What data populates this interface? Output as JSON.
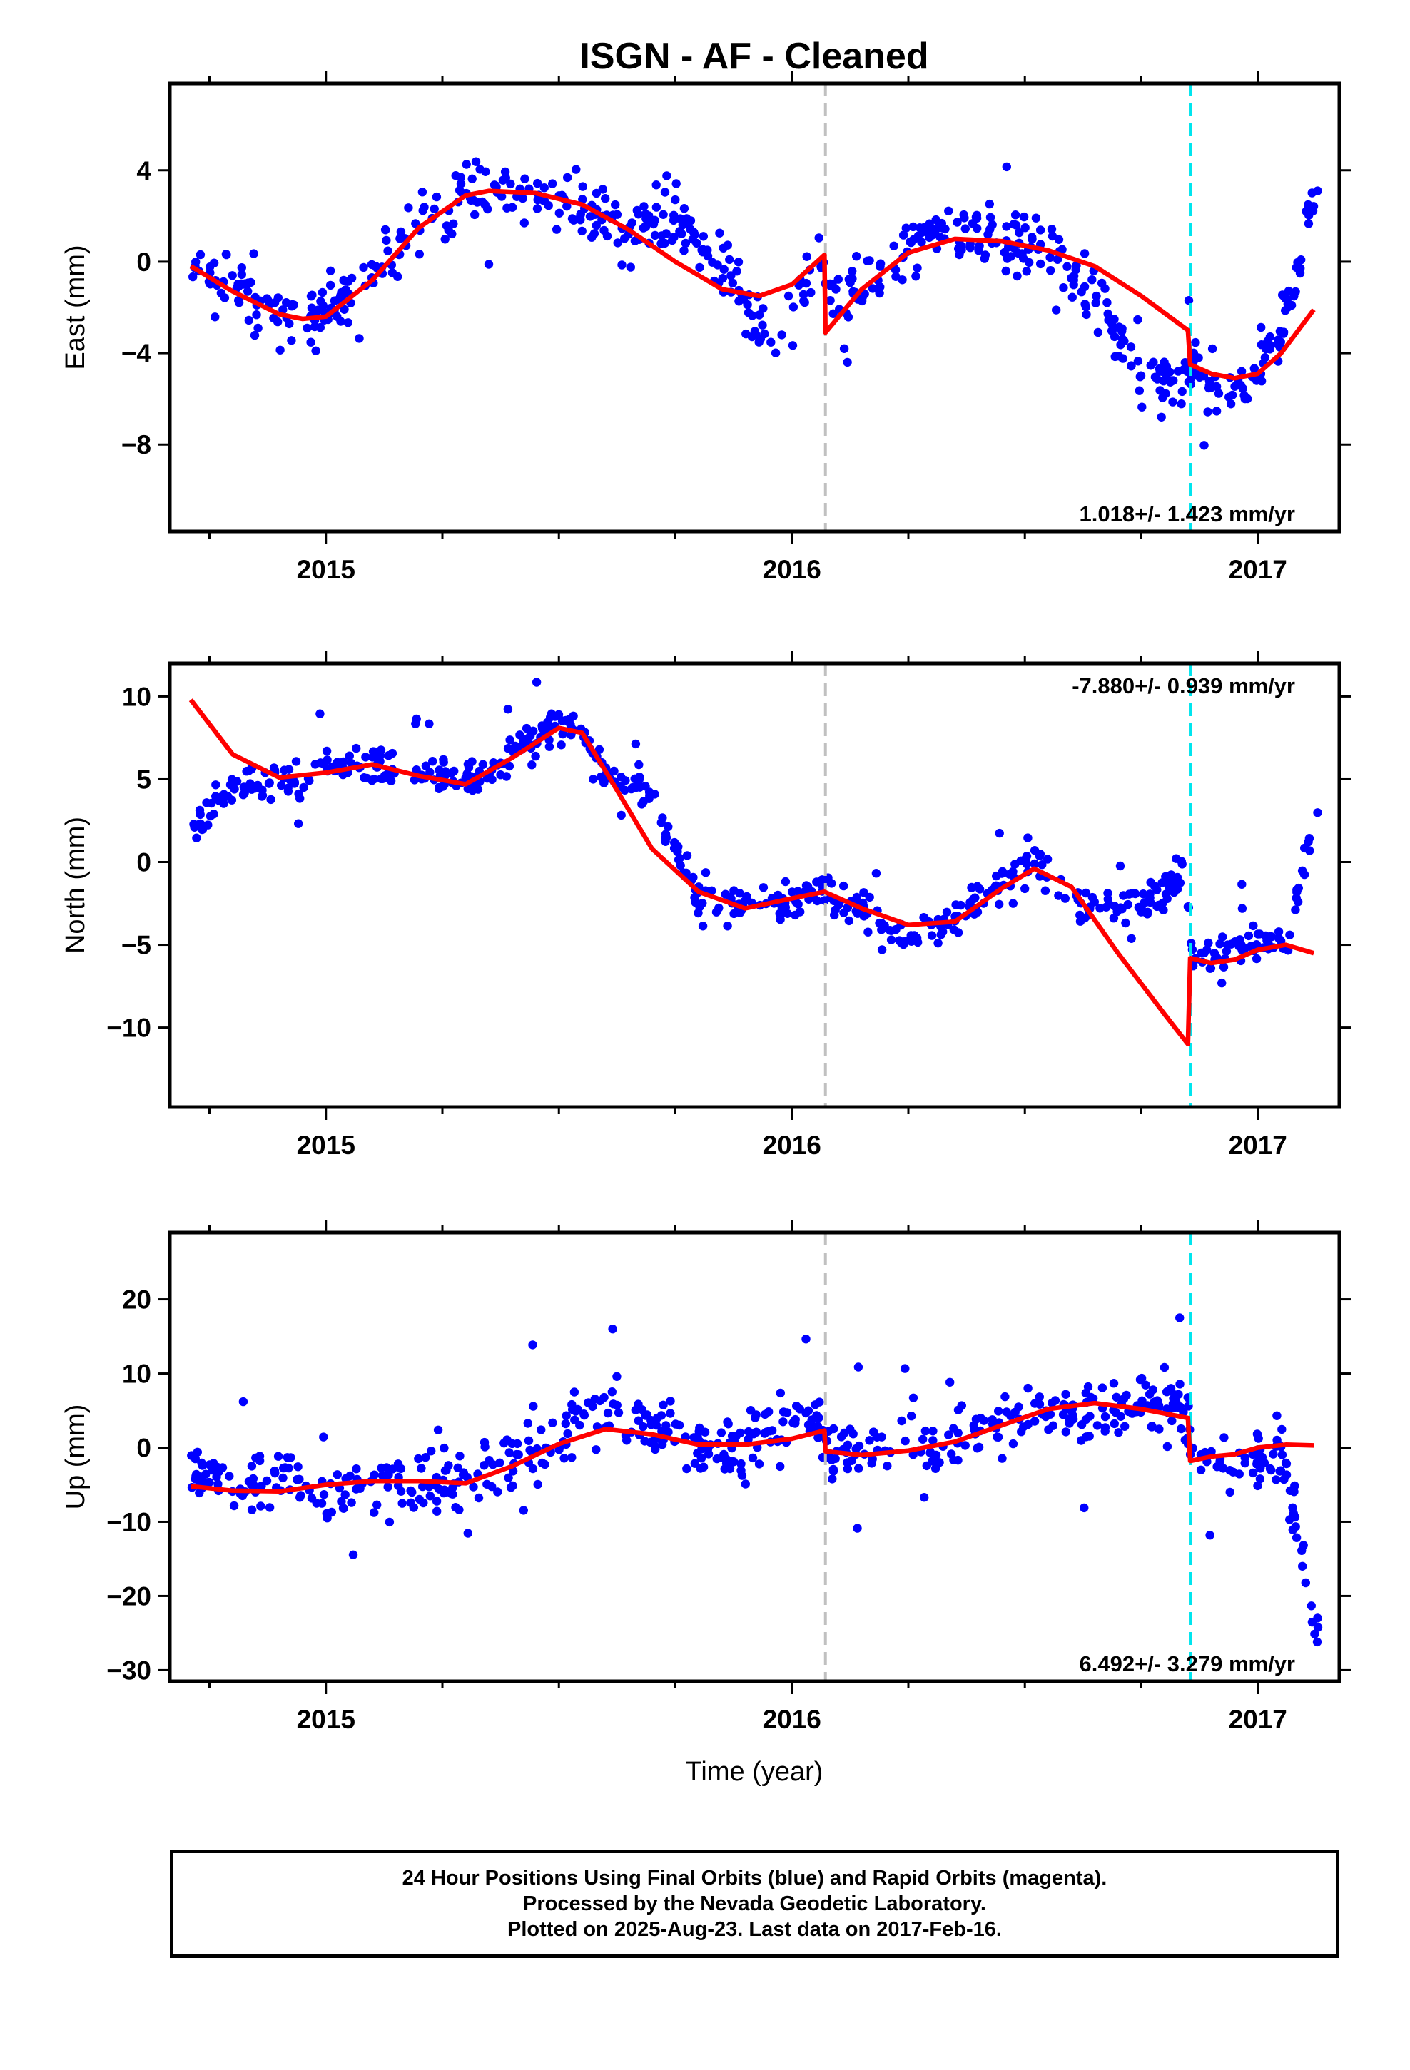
{
  "title": "ISGN  - AF - Cleaned",
  "xlabel": "Time (year)",
  "footer": {
    "line1": "24 Hour Positions Using Final Orbits (blue) and Rapid Orbits (magenta).",
    "line2": "Processed by the Nevada Geodetic Laboratory.",
    "line3": "Plotted on 2025-Aug-23. Last data on 2017-Feb-16."
  },
  "colors": {
    "points": "#0000ff",
    "fit": "#ff0000",
    "equipment_change": "#c0c0c0",
    "earthquake": "#00e5ee"
  },
  "chart_data": [
    {
      "type": "scatter",
      "ylabel": "East (mm)",
      "rate": "1.018+/- 1.423 mm/yr",
      "rate_position": "bottom-right",
      "xlim": [
        2014.665,
        2017.175
      ],
      "ylim": [
        -11.8,
        7.8
      ],
      "yticks": [
        -8,
        -4,
        0,
        4
      ],
      "xticks": [
        2015,
        2016,
        2017
      ],
      "vlines": [
        {
          "x": 2016.072,
          "kind": "equipment_change"
        },
        {
          "x": 2016.855,
          "kind": "earthquake"
        }
      ],
      "fit": {
        "x": [
          2014.71,
          2014.8,
          2014.9,
          2014.95,
          2015.0,
          2015.1,
          2015.2,
          2015.3,
          2015.35,
          2015.45,
          2015.55,
          2015.65,
          2015.75,
          2015.85,
          2015.93,
          2016.0,
          2016.07,
          2016.072,
          2016.15,
          2016.25,
          2016.35,
          2016.45,
          2016.55,
          2016.65,
          2016.75,
          2016.85,
          2016.855,
          2016.9,
          2016.95,
          2017.0,
          2017.05,
          2017.12
        ],
        "y": [
          -0.2,
          -1.3,
          -2.3,
          -2.5,
          -2.4,
          -0.8,
          1.5,
          2.9,
          3.1,
          3.0,
          2.5,
          1.4,
          0.0,
          -1.2,
          -1.5,
          -1.0,
          0.3,
          -3.1,
          -1.2,
          0.4,
          1.0,
          0.9,
          0.5,
          -0.2,
          -1.5,
          -3.0,
          -4.5,
          -4.9,
          -5.1,
          -4.9,
          -4.0,
          -2.1
        ]
      },
      "anchors": {
        "x": [
          2014.71,
          2014.8,
          2014.9,
          2015.0,
          2015.1,
          2015.2,
          2015.3,
          2015.45,
          2015.55,
          2015.65,
          2015.75,
          2015.85,
          2015.93,
          2016.0,
          2016.06,
          2016.08,
          2016.15,
          2016.25,
          2016.35,
          2016.45,
          2016.55,
          2016.65,
          2016.75,
          2016.84,
          2016.86,
          2016.95,
          2017.05,
          2017.12
        ],
        "y": [
          -0.5,
          -1.0,
          -2.5,
          -2.3,
          -0.5,
          1.5,
          3.0,
          3.0,
          2.3,
          1.5,
          2.0,
          0.0,
          -3.0,
          -2.0,
          0.5,
          -2.0,
          -1.0,
          0.5,
          1.5,
          1.0,
          0.8,
          -1.5,
          -5.0,
          -5.5,
          -4.5,
          -6.0,
          -3.0,
          2.5
        ]
      },
      "noise": 1.6
    },
    {
      "type": "scatter",
      "ylabel": "North (mm)",
      "rate": "-7.880+/- 0.939 mm/yr",
      "rate_position": "top-right",
      "xlim": [
        2014.665,
        2017.175
      ],
      "ylim": [
        -14.8,
        12.0
      ],
      "yticks": [
        -10,
        -5,
        0,
        5,
        10
      ],
      "xticks": [
        2015,
        2016,
        2017
      ],
      "vlines": [
        {
          "x": 2016.072,
          "kind": "equipment_change"
        },
        {
          "x": 2016.855,
          "kind": "earthquake"
        }
      ],
      "fit": {
        "x": [
          2014.71,
          2014.8,
          2014.9,
          2015.0,
          2015.1,
          2015.2,
          2015.3,
          2015.4,
          2015.5,
          2015.55,
          2015.6,
          2015.7,
          2015.8,
          2015.9,
          2016.0,
          2016.07,
          2016.15,
          2016.25,
          2016.35,
          2016.45,
          2016.52,
          2016.6,
          2016.7,
          2016.8,
          2016.85,
          2016.855,
          2016.9,
          2016.95,
          2017.0,
          2017.06,
          2017.12
        ],
        "y": [
          9.8,
          6.5,
          5.1,
          5.4,
          5.9,
          5.2,
          4.7,
          6.3,
          8.1,
          7.8,
          5.5,
          0.8,
          -1.8,
          -2.8,
          -2.2,
          -1.8,
          -2.8,
          -3.8,
          -3.6,
          -1.6,
          -0.4,
          -1.5,
          -5.5,
          -9.2,
          -11.0,
          -5.8,
          -6.1,
          -5.9,
          -5.3,
          -5.0,
          -5.5
        ]
      },
      "anchors": {
        "x": [
          2014.71,
          2014.8,
          2014.9,
          2015.0,
          2015.1,
          2015.2,
          2015.3,
          2015.4,
          2015.5,
          2015.55,
          2015.6,
          2015.7,
          2015.8,
          2015.9,
          2016.0,
          2016.07,
          2016.15,
          2016.25,
          2016.35,
          2016.45,
          2016.52,
          2016.6,
          2016.7,
          2016.8,
          2016.84,
          2016.86,
          2016.95,
          2017.06,
          2017.12
        ],
        "y": [
          2.0,
          4.5,
          5.0,
          5.5,
          6.0,
          5.5,
          5.0,
          6.5,
          8.5,
          7.5,
          5.5,
          4.0,
          -2.5,
          -2.5,
          -2.5,
          -1.5,
          -3.0,
          -4.5,
          -3.5,
          -1.0,
          0.0,
          -2.0,
          -3.0,
          -2.0,
          0.0,
          -6.0,
          -5.0,
          -5.0,
          2.5
        ]
      },
      "noise": 1.3
    },
    {
      "type": "scatter",
      "ylabel": "Up (mm)",
      "rate": "6.492+/- 3.279 mm/yr",
      "rate_position": "bottom-right",
      "xlim": [
        2014.665,
        2017.175
      ],
      "ylim": [
        -31.5,
        29.0
      ],
      "yticks": [
        -30,
        -20,
        -10,
        0,
        10,
        20
      ],
      "xticks": [
        2015,
        2016,
        2017
      ],
      "vlines": [
        {
          "x": 2016.072,
          "kind": "equipment_change"
        },
        {
          "x": 2016.855,
          "kind": "earthquake"
        }
      ],
      "fit": {
        "x": [
          2014.71,
          2014.8,
          2014.9,
          2015.0,
          2015.1,
          2015.2,
          2015.3,
          2015.4,
          2015.5,
          2015.6,
          2015.7,
          2015.8,
          2015.9,
          2016.0,
          2016.07,
          2016.072,
          2016.15,
          2016.25,
          2016.35,
          2016.45,
          2016.55,
          2016.65,
          2016.75,
          2016.85,
          2016.855,
          2016.9,
          2016.95,
          2017.0,
          2017.06,
          2017.12
        ],
        "y": [
          -5.2,
          -5.8,
          -5.9,
          -5.0,
          -4.5,
          -4.5,
          -4.8,
          -2.5,
          0.5,
          2.5,
          1.8,
          0.4,
          0.4,
          1.2,
          2.3,
          -0.5,
          -1.0,
          -0.4,
          0.8,
          3.0,
          5.2,
          6.0,
          5.2,
          4.0,
          -1.8,
          -1.2,
          -0.9,
          0.0,
          0.4,
          0.3
        ]
      },
      "anchors": {
        "x": [
          2014.71,
          2014.8,
          2014.9,
          2015.0,
          2015.1,
          2015.2,
          2015.3,
          2015.4,
          2015.5,
          2015.6,
          2015.7,
          2015.8,
          2015.9,
          2016.0,
          2016.06,
          2016.08,
          2016.15,
          2016.25,
          2016.35,
          2016.45,
          2016.55,
          2016.65,
          2016.75,
          2016.84,
          2016.86,
          2016.95,
          2017.05,
          2017.12
        ],
        "y": [
          -3.0,
          -5.0,
          -4.0,
          -7.0,
          -4.0,
          -5.0,
          -4.0,
          -2.0,
          2.0,
          5.0,
          3.0,
          0.0,
          0.0,
          3.0,
          4.0,
          0.0,
          0.0,
          1.0,
          1.0,
          3.0,
          5.0,
          5.0,
          5.0,
          6.0,
          0.0,
          -3.0,
          0.0,
          -24.0
        ]
      },
      "noise": 5.0
    }
  ]
}
